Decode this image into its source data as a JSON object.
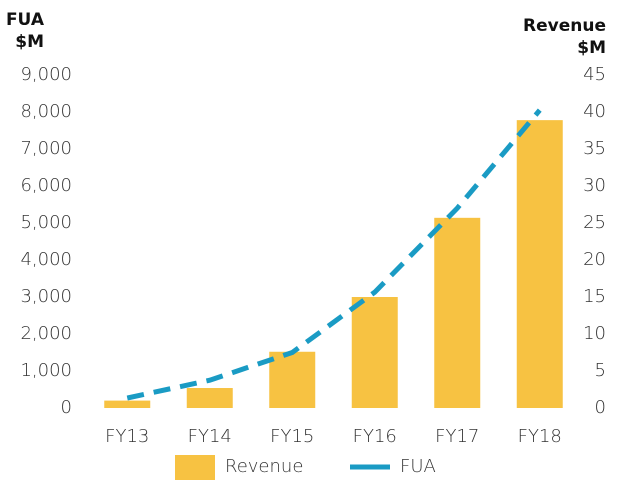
{
  "chart_data": {
    "type": "bar",
    "y_label": [
      "FUA",
      "$M"
    ],
    "y2_label": [
      "Revenue",
      "$M"
    ],
    "categories": [
      "FY13",
      "FY14",
      "FY15",
      "FY16",
      "FY17",
      "FY18"
    ],
    "series": [
      {
        "name": "Revenue",
        "type": "bar",
        "axis": "y2",
        "color": "#f7c242",
        "values": [
          1,
          2.7,
          7.6,
          15,
          25.7,
          38.9
        ]
      },
      {
        "name": "FUA",
        "type": "line",
        "axis": "y",
        "color": "#1a9bc4",
        "values": [
          270,
          750,
          1500,
          3130,
          5400,
          8050
        ]
      }
    ],
    "ylim": [
      0,
      9000
    ],
    "yticks": [
      0,
      {
        "value": 1000,
        "label": "1,000"
      },
      {
        "value": 2000,
        "label": "2,000"
      },
      {
        "value": 3000,
        "label": "3,000"
      },
      {
        "value": 4000,
        "label": "4,000"
      },
      {
        "value": 5000,
        "label": "5,000"
      },
      {
        "value": 6000,
        "label": "6,000"
      },
      {
        "value": 7000,
        "label": "7,000"
      },
      {
        "value": 8000,
        "label": "8,000"
      },
      {
        "value": 9000,
        "label": "9,000"
      }
    ],
    "y2lim": [
      0,
      45
    ],
    "y2ticks": [
      0,
      5,
      10,
      15,
      20,
      25,
      30,
      35,
      40,
      45
    ],
    "grid": false,
    "legend": "bottom"
  }
}
